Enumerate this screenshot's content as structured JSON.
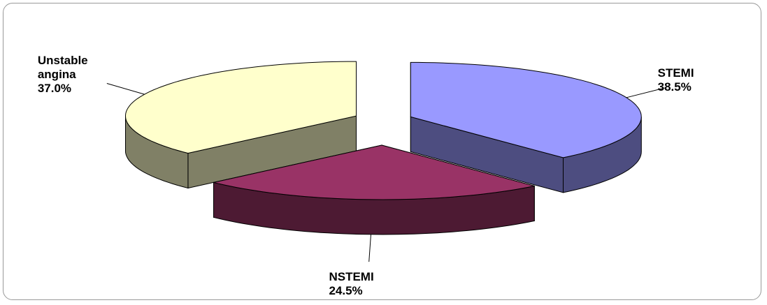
{
  "chart_data": {
    "type": "pie3d",
    "categories": [
      "STEMI",
      "NSTEMI",
      "Unstable angina"
    ],
    "values": [
      38.5,
      24.5,
      37.0
    ],
    "value_labels": [
      "38.5%",
      "24.5%",
      "37.0%"
    ],
    "colors": [
      "#9999ff",
      "#993366",
      "#ffffcc"
    ]
  }
}
